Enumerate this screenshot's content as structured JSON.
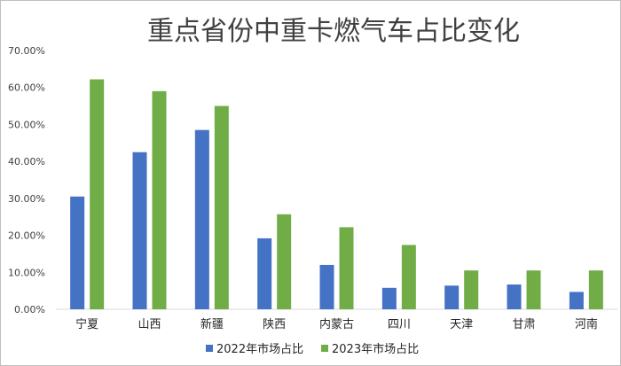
{
  "chart_data": {
    "type": "bar",
    "title": "重点省份中重卡燃气车占比变化",
    "categories": [
      "宁夏",
      "山西",
      "新疆",
      "陕西",
      "内蒙古",
      "四川",
      "天津",
      "甘肃",
      "河南"
    ],
    "series": [
      {
        "name": "2022年市场占比",
        "color": "#4472c4",
        "values": [
          30.5,
          42.5,
          48.5,
          19.2,
          12.0,
          5.8,
          6.4,
          6.7,
          4.7
        ]
      },
      {
        "name": "2023年市场占比",
        "color": "#70ad47",
        "values": [
          62.2,
          59.0,
          55.0,
          25.7,
          22.2,
          17.4,
          10.5,
          10.5,
          10.5
        ]
      }
    ],
    "ylim": [
      0,
      70
    ],
    "yticks": [
      "0.00%",
      "10.00%",
      "20.00%",
      "30.00%",
      "40.00%",
      "50.00%",
      "60.00%",
      "70.00%"
    ],
    "legend_position": "bottom",
    "grid": false
  }
}
